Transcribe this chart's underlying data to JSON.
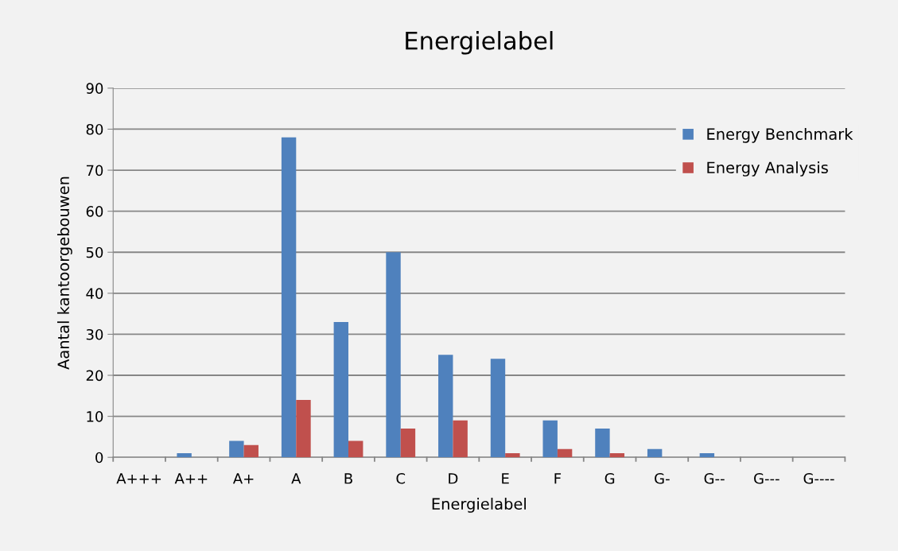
{
  "chart_data": {
    "type": "bar",
    "title": "Energielabel",
    "xlabel": "Energielabel",
    "ylabel": "Aantal kantoorgebouwen",
    "categories": [
      "A+++",
      "A++",
      "A+",
      "A",
      "B",
      "C",
      "D",
      "E",
      "F",
      "G",
      "G-",
      "G--",
      "G---",
      "G----"
    ],
    "series": [
      {
        "name": "Energy Benchmark",
        "color": "#4f81bd",
        "values": [
          0,
          1,
          4,
          78,
          33,
          50,
          25,
          24,
          9,
          7,
          2,
          1,
          0,
          0
        ]
      },
      {
        "name": "Energy Analysis",
        "color": "#c0504d",
        "values": [
          0,
          0,
          3,
          14,
          4,
          7,
          9,
          1,
          2,
          1,
          0,
          0,
          0,
          0
        ]
      }
    ],
    "ylim": [
      0,
      90
    ],
    "yticks": [
      0,
      10,
      20,
      30,
      40,
      50,
      60,
      70,
      80,
      90
    ],
    "grid": "y",
    "legend": "top right"
  }
}
